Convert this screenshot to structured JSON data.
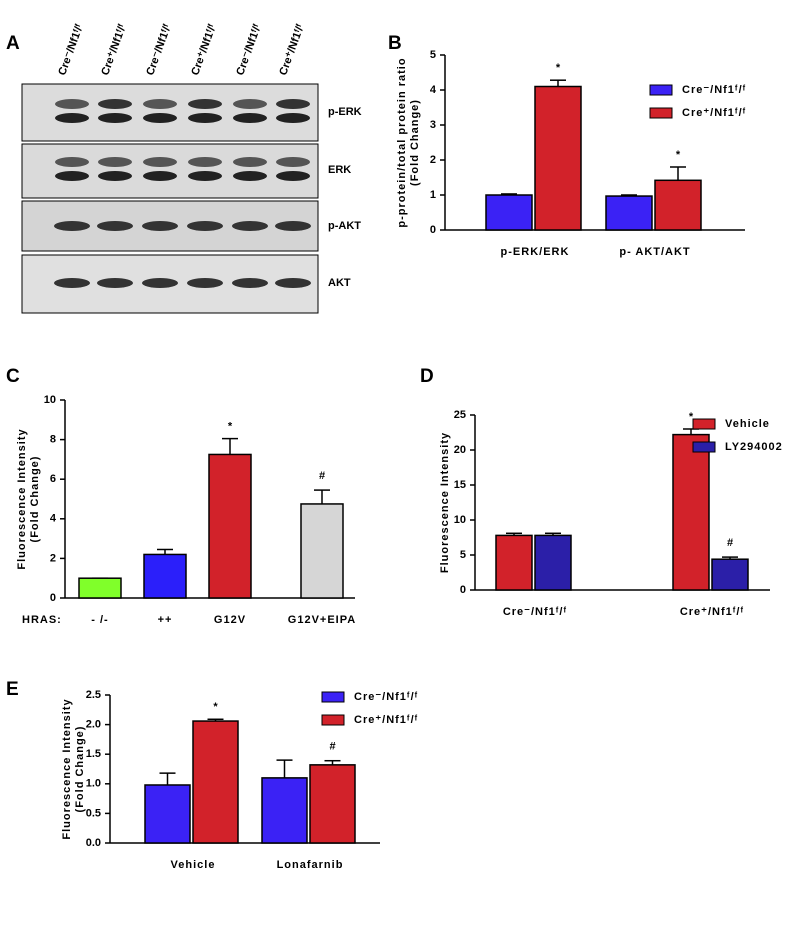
{
  "blot": {
    "panel": "A",
    "lanes": [
      "Cre⁻/Nf1ᶠ/ᶠ",
      "Cre⁺/Nf1ᶠ/ᶠ",
      "Cre⁻/Nf1ᶠ/ᶠ",
      "Cre⁺/Nf1ᶠ/ᶠ",
      "Cre⁻/Nf1ᶠ/ᶠ",
      "Cre⁺/Nf1ᶠ/ᶠ"
    ],
    "rows": [
      "p-ERK",
      "ERK",
      "p-AKT",
      "AKT"
    ]
  },
  "chart_data": [
    {
      "type": "bar",
      "panel": "B",
      "y_label": [
        "p-protein/total protein ratio",
        "(Fold Change)"
      ],
      "categories": [
        "p-ERK/ERK",
        "p- AKT/AKT"
      ],
      "series": [
        {
          "name": "Cre⁻/Nf1ᶠ/ᶠ",
          "color": "#3b22f5",
          "values": [
            1.0,
            0.97
          ],
          "errors": [
            0.03,
            0.03
          ],
          "annotations": [
            null,
            null
          ]
        },
        {
          "name": "Cre⁺/Nf1ᶠ/ᶠ",
          "color": "#d2222a",
          "values": [
            4.1,
            1.42
          ],
          "errors": [
            0.18,
            0.38
          ],
          "annotations": [
            "*",
            "*"
          ]
        }
      ],
      "ylim": [
        0,
        5
      ],
      "yticks": [
        0,
        1,
        2,
        3,
        4,
        5
      ]
    },
    {
      "type": "bar",
      "panel": "C",
      "y_label": [
        "Fluorescence Intensity",
        "(Fold Change)"
      ],
      "x_label": "HRAS:",
      "categories": [
        "- /-",
        "++",
        "G12V",
        "G12V+EIPA"
      ],
      "values": [
        1.0,
        2.2,
        7.25,
        4.75
      ],
      "errors": [
        0.0,
        0.25,
        0.8,
        0.7
      ],
      "colors": [
        "#80ff2a",
        "#2b1ffa",
        "#d2222a",
        "#d6d6d6"
      ],
      "annotations": [
        null,
        null,
        "*",
        "#"
      ],
      "ylim": [
        0,
        10
      ],
      "yticks": [
        0,
        2,
        4,
        6,
        8,
        10
      ]
    },
    {
      "type": "bar",
      "panel": "D",
      "y_label": [
        "Fluorescence Intensity"
      ],
      "categories": [
        "Cre⁻/Nf1ᶠ/ᶠ",
        "Cre⁺/Nf1ᶠ/ᶠ"
      ],
      "series": [
        {
          "name": "Vehicle",
          "color": "#d2222a",
          "values": [
            7.8,
            22.2
          ],
          "errors": [
            0.3,
            0.8
          ],
          "annotations": [
            null,
            "*"
          ]
        },
        {
          "name": "LY294002",
          "color": "#2b1fa8",
          "values": [
            7.8,
            4.4
          ],
          "errors": [
            0.3,
            0.3
          ],
          "annotations": [
            null,
            "#"
          ]
        }
      ],
      "ylim": [
        0,
        25
      ],
      "yticks": [
        0,
        5,
        10,
        15,
        20,
        25
      ]
    },
    {
      "type": "bar",
      "panel": "E",
      "y_label": [
        "Fluorescence Intensity",
        "(Fold Change)"
      ],
      "categories": [
        "Vehicle",
        "Lonafarnib"
      ],
      "series": [
        {
          "name": "Cre⁻/Nf1ᶠ/ᶠ",
          "color": "#3b22f5",
          "values": [
            0.98,
            1.1
          ],
          "errors": [
            0.2,
            0.3
          ],
          "annotations": [
            null,
            null
          ]
        },
        {
          "name": "Cre⁺/Nf1ᶠ/ᶠ",
          "color": "#d2222a",
          "values": [
            2.06,
            1.32
          ],
          "errors": [
            0.03,
            0.07
          ],
          "annotations": [
            "*",
            "#"
          ]
        }
      ],
      "ylim": [
        0,
        2.5
      ],
      "yticks": [
        {
          "value": 0,
          "label": "0.0"
        },
        0.5,
        {
          "value": 1,
          "label": "1.0"
        },
        1.5,
        {
          "value": 2,
          "label": "2.0"
        },
        2.5
      ]
    }
  ]
}
